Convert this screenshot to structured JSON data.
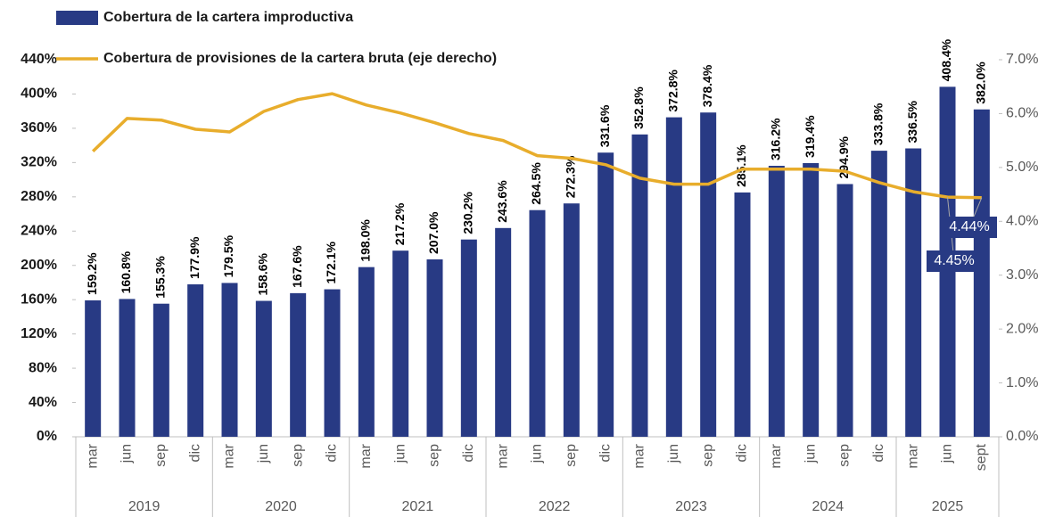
{
  "chart_data": {
    "type": "bar_line",
    "groups": [
      {
        "label": "2019",
        "categories": [
          "mar",
          "jun",
          "sep",
          "dic"
        ]
      },
      {
        "label": "2020",
        "categories": [
          "mar",
          "jun",
          "sep",
          "dic"
        ]
      },
      {
        "label": "2021",
        "categories": [
          "mar",
          "jun",
          "sep",
          "dic"
        ]
      },
      {
        "label": "2022",
        "categories": [
          "mar",
          "jun",
          "sep",
          "dic"
        ]
      },
      {
        "label": "2023",
        "categories": [
          "mar",
          "jun",
          "sep",
          "dic"
        ]
      },
      {
        "label": "2024",
        "categories": [
          "mar",
          "jun",
          "sep",
          "dic"
        ]
      },
      {
        "label": "2025",
        "categories": [
          "mar",
          "jun",
          "sept"
        ]
      }
    ],
    "series": [
      {
        "name": "Cobertura de la cartera improductiva",
        "type": "bar",
        "color": "#283a84",
        "values": [
          159.2,
          160.8,
          155.3,
          177.9,
          179.5,
          158.6,
          167.6,
          172.1,
          198.0,
          217.2,
          207.0,
          230.2,
          243.6,
          264.5,
          272.3,
          331.6,
          352.8,
          372.8,
          378.4,
          285.1,
          316.2,
          319.4,
          294.9,
          333.8,
          336.5,
          408.4,
          382.0
        ],
        "value_labels": [
          "159.2%",
          "160.8%",
          "155.3%",
          "177.9%",
          "179.5%",
          "158.6%",
          "167.6%",
          "172.1%",
          "198.0%",
          "217.2%",
          "207.0%",
          "230.2%",
          "243.6%",
          "264.5%",
          "272.3%",
          "331.6%",
          "352.8%",
          "372.8%",
          "378.4%",
          "285.1%",
          "316.2%",
          "319.4%",
          "294.9%",
          "333.8%",
          "336.5%",
          "408.4%",
          "382.0%"
        ]
      },
      {
        "name": "Cobertura de provisiones de la cartera bruta (eje derecho)",
        "type": "line",
        "axis": "y2",
        "color": "#e8ad2c",
        "values": [
          5.3,
          5.91,
          5.88,
          5.71,
          5.66,
          6.04,
          6.26,
          6.37,
          6.16,
          6.01,
          5.83,
          5.63,
          5.5,
          5.22,
          5.17,
          5.05,
          4.8,
          4.69,
          4.69,
          4.97,
          4.97,
          4.97,
          4.93,
          4.72,
          4.55,
          4.45,
          4.44
        ],
        "value_labels": [
          null,
          null,
          null,
          null,
          null,
          null,
          null,
          null,
          null,
          null,
          null,
          null,
          null,
          null,
          null,
          null,
          null,
          null,
          null,
          null,
          null,
          null,
          null,
          null,
          null,
          "4.45%",
          "4.44%"
        ]
      }
    ],
    "ylim": [
      0,
      440
    ],
    "yticks": [
      {
        "value": 0,
        "label": "0%"
      },
      {
        "value": 40,
        "label": "40%"
      },
      {
        "value": 80,
        "label": "80%"
      },
      {
        "value": 120,
        "label": "120%"
      },
      {
        "value": 160,
        "label": "160%"
      },
      {
        "value": 200,
        "label": "200%"
      },
      {
        "value": 240,
        "label": "240%"
      },
      {
        "value": 280,
        "label": "280%"
      },
      {
        "value": 320,
        "label": "320%"
      },
      {
        "value": 360,
        "label": "360%"
      },
      {
        "value": 400,
        "label": "400%"
      },
      {
        "value": 440,
        "label": "440%"
      }
    ],
    "y2lim": [
      0,
      7
    ],
    "y2ticks": [
      {
        "value": 0,
        "label": "0.0%"
      },
      {
        "value": 1,
        "label": "1.0%"
      },
      {
        "value": 2,
        "label": "2.0%"
      },
      {
        "value": 3,
        "label": "3.0%"
      },
      {
        "value": 4,
        "label": "4.0%"
      },
      {
        "value": 5,
        "label": "5.0%"
      },
      {
        "value": 6,
        "label": "6.0%"
      },
      {
        "value": 7,
        "label": "7.0%"
      }
    ],
    "grid": false
  }
}
